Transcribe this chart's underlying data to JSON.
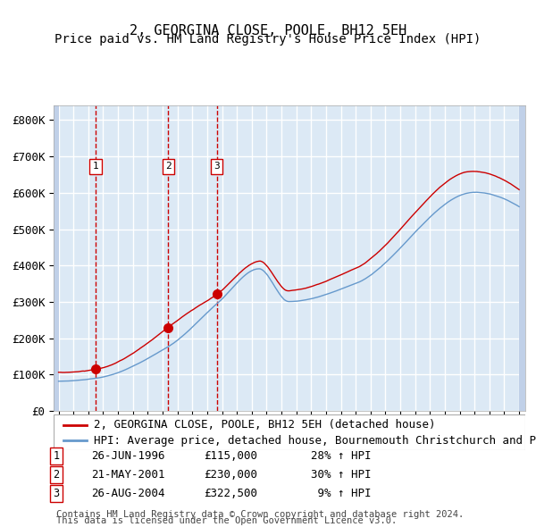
{
  "title": "2, GEORGINA CLOSE, POOLE, BH12 5EH",
  "subtitle": "Price paid vs. HM Land Registry's House Price Index (HPI)",
  "sale_dates": [
    "1996-06-26",
    "2001-05-21",
    "2004-08-26"
  ],
  "sale_prices": [
    115000,
    230000,
    322500
  ],
  "sale_labels": [
    "1",
    "2",
    "3"
  ],
  "sale_annotations": [
    "26-JUN-1996    £115,000    28% ↑ HPI",
    "21-MAY-2001    £230,000    30% ↑ HPI",
    "26-AUG-2004    £322,500      9% ↑ HPI"
  ],
  "legend_line1": "2, GEORGINA CLOSE, POOLE, BH12 5EH (detached house)",
  "legend_line2": "HPI: Average price, detached house, Bournemouth Christchurch and Poole",
  "footnote1": "Contains HM Land Registry data © Crown copyright and database right 2024.",
  "footnote2": "This data is licensed under the Open Government Licence v3.0.",
  "ylabel_ticks": [
    "£0",
    "£100K",
    "£200K",
    "£300K",
    "£400K",
    "£500K",
    "£600K",
    "£700K",
    "£800K"
  ],
  "ytick_values": [
    0,
    100000,
    200000,
    300000,
    400000,
    500000,
    600000,
    700000,
    800000
  ],
  "ylim": [
    0,
    840000
  ],
  "hpi_color": "#6699cc",
  "property_color": "#cc0000",
  "sale_marker_color": "#cc0000",
  "vline_color": "#cc0000",
  "box_color": "#cc0000",
  "bg_color": "#dce9f5",
  "plot_bg": "#dce9f5",
  "hatch_color": "#b0c4de",
  "grid_color": "#ffffff",
  "title_fontsize": 11,
  "subtitle_fontsize": 10,
  "axis_fontsize": 9,
  "legend_fontsize": 9,
  "annotation_fontsize": 9,
  "footnote_fontsize": 7.5
}
